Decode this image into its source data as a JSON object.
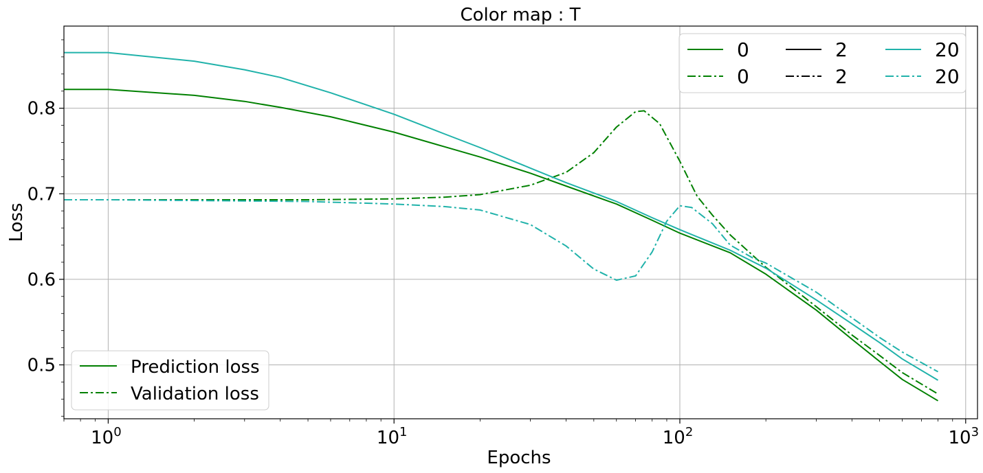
{
  "chart_data": {
    "type": "line",
    "title": "Color map : T",
    "xlabel": "Epochs",
    "ylabel": "Loss",
    "xscale": "log",
    "xlim": [
      0.7,
      1100
    ],
    "ylim": [
      0.437,
      0.896
    ],
    "grid": true,
    "x_ticks": [
      {
        "value": 1,
        "base": "10",
        "exp": "0"
      },
      {
        "value": 10,
        "base": "10",
        "exp": "1"
      },
      {
        "value": 100,
        "base": "10",
        "exp": "2"
      },
      {
        "value": 1000,
        "base": "10",
        "exp": "3"
      }
    ],
    "y_ticks": [
      {
        "value": 0.5,
        "label": "0.5"
      },
      {
        "value": 0.6,
        "label": "0.6"
      },
      {
        "value": 0.7,
        "label": "0.7"
      },
      {
        "value": 0.8,
        "label": "0.8"
      }
    ],
    "legend_placement": "top-right",
    "legend_columns": [
      {
        "color": "#008000",
        "solid_label": "0",
        "dashdot_label": "0"
      },
      {
        "color": "#000000",
        "solid_label": "2",
        "dashdot_label": "2"
      },
      {
        "color": "#20b2aa",
        "solid_label": "20",
        "dashdot_label": "20"
      }
    ],
    "style_legend_placement": "bottom-left",
    "style_legend": [
      {
        "style": "solid",
        "color": "#008000",
        "label": "Prediction loss"
      },
      {
        "style": "dashdot",
        "color": "#008000",
        "label": "Validation loss"
      }
    ],
    "series": [
      {
        "legend_label": "0",
        "kind": "prediction",
        "color": "#008000",
        "style": "solid",
        "points": [
          [
            0.7,
            0.822
          ],
          [
            1,
            0.822
          ],
          [
            2,
            0.815
          ],
          [
            3,
            0.808
          ],
          [
            4,
            0.801
          ],
          [
            6,
            0.79
          ],
          [
            10,
            0.772
          ],
          [
            15,
            0.755
          ],
          [
            20,
            0.743
          ],
          [
            30,
            0.724
          ],
          [
            40,
            0.709
          ],
          [
            60,
            0.688
          ],
          [
            80,
            0.669
          ],
          [
            100,
            0.654
          ],
          [
            150,
            0.631
          ],
          [
            200,
            0.606
          ],
          [
            300,
            0.564
          ],
          [
            400,
            0.53
          ],
          [
            500,
            0.504
          ],
          [
            600,
            0.483
          ],
          [
            800,
            0.458
          ]
        ]
      },
      {
        "legend_label": "0",
        "kind": "validation",
        "color": "#008000",
        "style": "dashdot",
        "points": [
          [
            0.7,
            0.693
          ],
          [
            1,
            0.693
          ],
          [
            5,
            0.693
          ],
          [
            10,
            0.694
          ],
          [
            15,
            0.696
          ],
          [
            20,
            0.699
          ],
          [
            30,
            0.71
          ],
          [
            40,
            0.725
          ],
          [
            50,
            0.748
          ],
          [
            60,
            0.778
          ],
          [
            70,
            0.796
          ],
          [
            75,
            0.797
          ],
          [
            85,
            0.782
          ],
          [
            100,
            0.738
          ],
          [
            115,
            0.697
          ],
          [
            130,
            0.675
          ],
          [
            150,
            0.652
          ],
          [
            200,
            0.614
          ],
          [
            300,
            0.568
          ],
          [
            400,
            0.535
          ],
          [
            500,
            0.511
          ],
          [
            600,
            0.491
          ],
          [
            800,
            0.466
          ]
        ]
      },
      {
        "legend_label": "20",
        "kind": "prediction",
        "color": "#20b2aa",
        "style": "solid",
        "points": [
          [
            0.7,
            0.865
          ],
          [
            1,
            0.865
          ],
          [
            2,
            0.855
          ],
          [
            3,
            0.845
          ],
          [
            4,
            0.836
          ],
          [
            6,
            0.818
          ],
          [
            10,
            0.793
          ],
          [
            15,
            0.77
          ],
          [
            20,
            0.754
          ],
          [
            30,
            0.73
          ],
          [
            40,
            0.713
          ],
          [
            60,
            0.691
          ],
          [
            80,
            0.672
          ],
          [
            100,
            0.658
          ],
          [
            150,
            0.634
          ],
          [
            200,
            0.613
          ],
          [
            300,
            0.576
          ],
          [
            400,
            0.548
          ],
          [
            500,
            0.526
          ],
          [
            600,
            0.507
          ],
          [
            800,
            0.482
          ]
        ]
      },
      {
        "legend_label": "20",
        "kind": "validation",
        "color": "#20b2aa",
        "style": "dashdot",
        "points": [
          [
            0.7,
            0.693
          ],
          [
            1,
            0.693
          ],
          [
            5,
            0.691
          ],
          [
            10,
            0.688
          ],
          [
            15,
            0.685
          ],
          [
            20,
            0.681
          ],
          [
            30,
            0.664
          ],
          [
            40,
            0.639
          ],
          [
            50,
            0.612
          ],
          [
            60,
            0.599
          ],
          [
            70,
            0.604
          ],
          [
            80,
            0.632
          ],
          [
            90,
            0.668
          ],
          [
            100,
            0.686
          ],
          [
            110,
            0.684
          ],
          [
            130,
            0.665
          ],
          [
            150,
            0.64
          ],
          [
            180,
            0.625
          ],
          [
            200,
            0.619
          ],
          [
            300,
            0.585
          ],
          [
            400,
            0.555
          ],
          [
            500,
            0.532
          ],
          [
            600,
            0.515
          ],
          [
            800,
            0.492
          ]
        ]
      }
    ]
  }
}
